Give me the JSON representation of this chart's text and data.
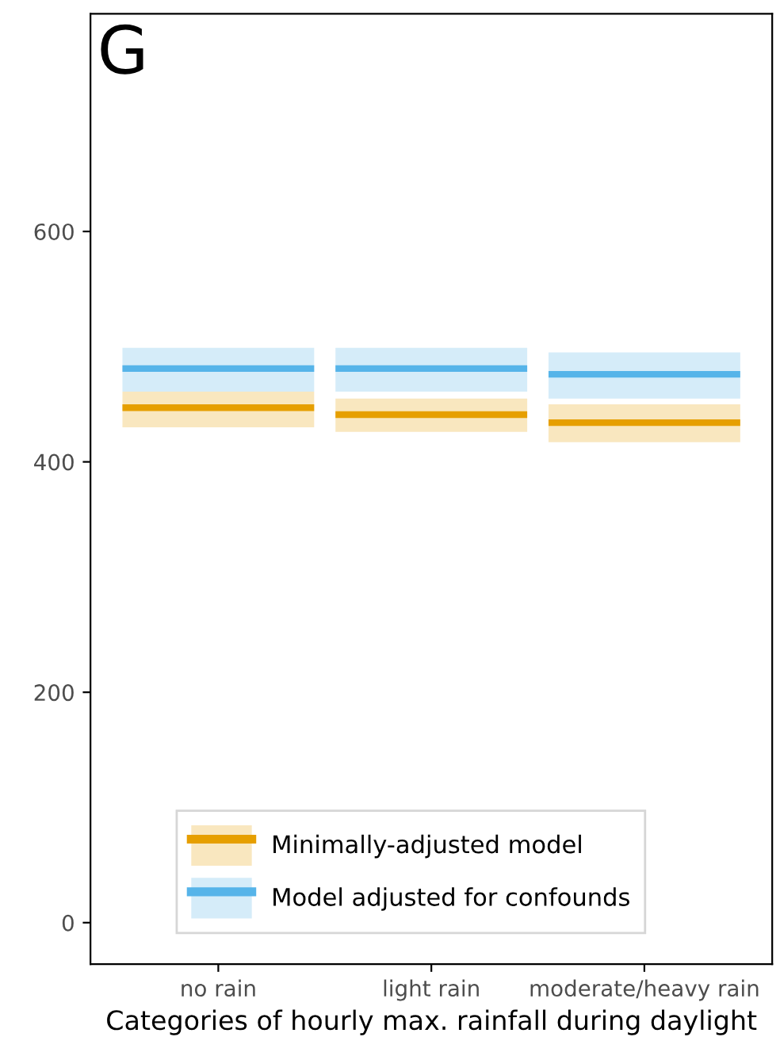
{
  "chart_data": {
    "type": "box",
    "title": "G",
    "xlabel": "Categories of hourly max. rainfall during daylight",
    "categories": [
      "no rain",
      "light rain",
      "moderate/heavy rain"
    ],
    "series": [
      {
        "name": "Minimally-adjusted model",
        "color": "#e69f00",
        "boxes": [
          {
            "low": 430,
            "q1": 430,
            "median": 447,
            "q3": 461,
            "high": 461
          },
          {
            "low": 426,
            "q1": 426,
            "median": 441,
            "q3": 455,
            "high": 455
          },
          {
            "low": 417,
            "q1": 417,
            "median": 434,
            "q3": 450,
            "high": 450
          }
        ]
      },
      {
        "name": "Model adjusted for confounds",
        "color": "#56b4e9",
        "boxes": [
          {
            "low": 461,
            "q1": 461,
            "median": 481,
            "q3": 499,
            "high": 499
          },
          {
            "low": 461,
            "q1": 461,
            "median": 481,
            "q3": 499,
            "high": 499
          },
          {
            "low": 455,
            "q1": 455,
            "median": 476,
            "q3": 495,
            "high": 495
          }
        ]
      }
    ],
    "ylim": [
      -36,
      789
    ],
    "yticks": [
      0,
      200,
      400,
      600
    ],
    "grid": false,
    "legend": "bottom"
  }
}
